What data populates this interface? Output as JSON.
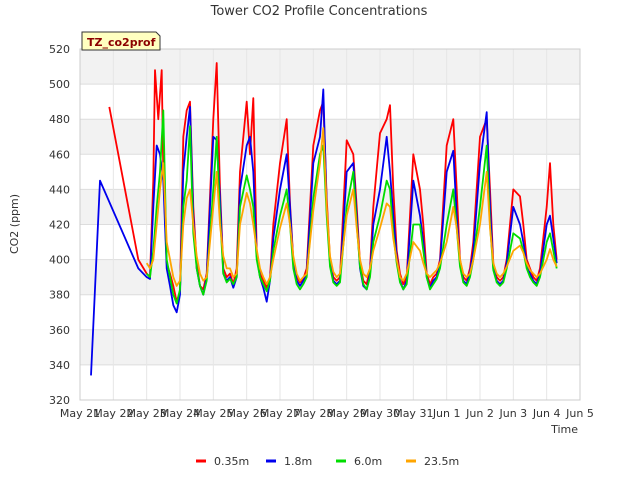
{
  "chart_data": {
    "type": "line",
    "title": "Tower CO2 Profile Concentrations",
    "badge": "TZ_co2prof",
    "xlabel": "Time",
    "ylabel": "CO2 (ppm)",
    "xlim": [
      0,
      15
    ],
    "ylim": [
      320,
      520
    ],
    "yticks": [
      320,
      340,
      360,
      380,
      400,
      420,
      440,
      460,
      480,
      500,
      520
    ],
    "xticks": [
      {
        "x": 0,
        "label": "May 21"
      },
      {
        "x": 1,
        "label": "May 22"
      },
      {
        "x": 2,
        "label": "May 23"
      },
      {
        "x": 3,
        "label": "May 24"
      },
      {
        "x": 4,
        "label": "May 25"
      },
      {
        "x": 5,
        "label": "May 26"
      },
      {
        "x": 6,
        "label": "May 27"
      },
      {
        "x": 7,
        "label": "May 28"
      },
      {
        "x": 8,
        "label": "May 29"
      },
      {
        "x": 9,
        "label": "May 30"
      },
      {
        "x": 10,
        "label": "May 31"
      },
      {
        "x": 11,
        "label": "Jun 1"
      },
      {
        "x": 12,
        "label": "Jun 2"
      },
      {
        "x": 13,
        "label": "Jun 3"
      },
      {
        "x": 14,
        "label": "Jun 4"
      },
      {
        "x": 15,
        "label": "Jun 5"
      }
    ],
    "grid": true,
    "legend_position": "bottom",
    "series": [
      {
        "name": "0.35m",
        "color": "#ff0000",
        "x": [
          0.88,
          1.75,
          2.0,
          2.1,
          2.2,
          2.25,
          2.35,
          2.45,
          2.5,
          2.6,
          2.7,
          2.8,
          2.9,
          3.0,
          3.1,
          3.2,
          3.3,
          3.4,
          3.5,
          3.6,
          3.7,
          3.8,
          4.0,
          4.1,
          4.2,
          4.3,
          4.4,
          4.5,
          4.6,
          4.7,
          4.8,
          5.0,
          5.1,
          5.2,
          5.3,
          5.4,
          5.5,
          5.6,
          5.7,
          5.8,
          6.0,
          6.2,
          6.3,
          6.4,
          6.5,
          6.6,
          6.7,
          6.8,
          7.0,
          7.2,
          7.3,
          7.4,
          7.5,
          7.6,
          7.7,
          7.8,
          8.0,
          8.2,
          8.3,
          8.4,
          8.5,
          8.6,
          8.7,
          8.8,
          9.0,
          9.2,
          9.3,
          9.4,
          9.5,
          9.6,
          9.7,
          9.8,
          10.0,
          10.2,
          10.3,
          10.4,
          10.5,
          10.6,
          10.7,
          10.8,
          11.0,
          11.2,
          11.3,
          11.4,
          11.5,
          11.6,
          11.7,
          11.8,
          12.0,
          12.2,
          12.3,
          12.4,
          12.5,
          12.6,
          12.7,
          12.8,
          13.0,
          13.2,
          13.3,
          13.4,
          13.5,
          13.6,
          13.7,
          13.8,
          14.0,
          14.1,
          14.2,
          14.3
        ],
        "y": [
          487,
          400,
          392,
          390,
          445,
          508,
          480,
          508,
          450,
          398,
          392,
          385,
          376,
          382,
          470,
          485,
          490,
          430,
          398,
          385,
          383,
          392,
          480,
          512,
          440,
          395,
          390,
          392,
          386,
          395,
          450,
          490,
          460,
          492,
          405,
          392,
          388,
          384,
          390,
          420,
          455,
          480,
          432,
          400,
          390,
          387,
          389,
          395,
          465,
          485,
          490,
          435,
          400,
          390,
          388,
          390,
          468,
          460,
          430,
          398,
          388,
          386,
          395,
          430,
          472,
          480,
          488,
          440,
          405,
          392,
          386,
          390,
          460,
          440,
          420,
          392,
          386,
          390,
          392,
          400,
          465,
          480,
          440,
          400,
          390,
          388,
          395,
          410,
          470,
          480,
          440,
          398,
          390,
          388,
          390,
          400,
          440,
          436,
          420,
          400,
          395,
          390,
          388,
          395,
          430,
          455,
          420,
          400
        ]
      },
      {
        "name": "1.8m",
        "color": "#0000ee",
        "x": [
          0.33,
          0.6,
          1.75,
          2.0,
          2.1,
          2.2,
          2.3,
          2.4,
          2.5,
          2.6,
          2.7,
          2.8,
          2.9,
          3.0,
          3.1,
          3.2,
          3.3,
          3.4,
          3.5,
          3.6,
          3.7,
          3.8,
          4.0,
          4.1,
          4.2,
          4.3,
          4.4,
          4.5,
          4.6,
          4.7,
          4.8,
          5.0,
          5.1,
          5.2,
          5.3,
          5.4,
          5.5,
          5.6,
          5.7,
          5.8,
          6.0,
          6.2,
          6.3,
          6.4,
          6.5,
          6.6,
          6.7,
          6.8,
          7.0,
          7.2,
          7.3,
          7.4,
          7.5,
          7.6,
          7.7,
          7.8,
          8.0,
          8.2,
          8.3,
          8.4,
          8.5,
          8.6,
          8.7,
          8.8,
          9.0,
          9.2,
          9.3,
          9.4,
          9.5,
          9.6,
          9.7,
          9.8,
          10.0,
          10.2,
          10.3,
          10.4,
          10.5,
          10.6,
          10.7,
          10.8,
          11.0,
          11.2,
          11.3,
          11.4,
          11.5,
          11.6,
          11.7,
          11.8,
          12.0,
          12.2,
          12.3,
          12.4,
          12.5,
          12.6,
          12.7,
          12.8,
          13.0,
          13.2,
          13.3,
          13.4,
          13.5,
          13.6,
          13.7,
          13.8,
          14.0,
          14.1,
          14.2,
          14.3
        ],
        "y": [
          334,
          445,
          395,
          390,
          389,
          430,
          465,
          460,
          445,
          395,
          385,
          374,
          370,
          380,
          450,
          470,
          487,
          425,
          395,
          385,
          380,
          390,
          470,
          468,
          435,
          392,
          388,
          390,
          384,
          390,
          440,
          465,
          470,
          450,
          402,
          390,
          384,
          376,
          388,
          412,
          440,
          460,
          430,
          398,
          388,
          385,
          388,
          392,
          455,
          470,
          497,
          430,
          398,
          388,
          386,
          388,
          450,
          455,
          425,
          395,
          385,
          383,
          392,
          420,
          440,
          470,
          450,
          425,
          402,
          388,
          383,
          388,
          445,
          425,
          410,
          390,
          384,
          388,
          390,
          398,
          450,
          462,
          425,
          398,
          388,
          386,
          393,
          405,
          455,
          484,
          430,
          395,
          388,
          386,
          388,
          398,
          430,
          420,
          410,
          398,
          392,
          388,
          386,
          392,
          420,
          425,
          412,
          398
        ]
      },
      {
        "name": "6.0m",
        "color": "#00dd00",
        "x": [
          2.0,
          2.1,
          2.2,
          2.3,
          2.4,
          2.5,
          2.6,
          2.7,
          2.8,
          2.9,
          3.0,
          3.1,
          3.2,
          3.3,
          3.4,
          3.5,
          3.6,
          3.7,
          3.8,
          4.0,
          4.1,
          4.2,
          4.3,
          4.4,
          4.5,
          4.6,
          4.7,
          4.8,
          5.0,
          5.1,
          5.2,
          5.3,
          5.4,
          5.5,
          5.6,
          5.7,
          5.8,
          6.0,
          6.2,
          6.3,
          6.4,
          6.5,
          6.6,
          6.7,
          6.8,
          7.0,
          7.2,
          7.3,
          7.4,
          7.5,
          7.6,
          7.7,
          7.8,
          8.0,
          8.2,
          8.3,
          8.4,
          8.5,
          8.6,
          8.7,
          8.8,
          9.0,
          9.2,
          9.3,
          9.4,
          9.5,
          9.6,
          9.7,
          9.8,
          10.0,
          10.2,
          10.3,
          10.4,
          10.5,
          10.6,
          10.7,
          10.8,
          11.0,
          11.2,
          11.3,
          11.4,
          11.5,
          11.6,
          11.7,
          11.8,
          12.0,
          12.2,
          12.3,
          12.4,
          12.5,
          12.6,
          12.7,
          12.8,
          13.0,
          13.2,
          13.3,
          13.4,
          13.5,
          13.6,
          13.7,
          13.8,
          14.0,
          14.1,
          14.2,
          14.3
        ],
        "y": [
          392,
          390,
          405,
          430,
          450,
          485,
          400,
          390,
          380,
          375,
          383,
          430,
          445,
          476,
          415,
          395,
          385,
          380,
          388,
          440,
          470,
          425,
          392,
          387,
          389,
          386,
          390,
          430,
          448,
          440,
          430,
          400,
          390,
          386,
          382,
          388,
          405,
          425,
          440,
          420,
          395,
          386,
          383,
          386,
          390,
          435,
          460,
          465,
          425,
          396,
          387,
          385,
          387,
          430,
          450,
          420,
          396,
          386,
          383,
          390,
          410,
          425,
          445,
          440,
          415,
          398,
          387,
          383,
          386,
          420,
          420,
          405,
          390,
          383,
          386,
          389,
          395,
          420,
          440,
          418,
          396,
          387,
          385,
          390,
          400,
          430,
          465,
          420,
          394,
          387,
          385,
          387,
          395,
          415,
          412,
          405,
          395,
          390,
          387,
          385,
          390,
          410,
          415,
          405,
          395
        ]
      },
      {
        "name": "23.5m",
        "color": "#ffa500",
        "x": [
          2.0,
          2.1,
          2.2,
          2.3,
          2.4,
          2.5,
          2.6,
          2.7,
          2.8,
          2.9,
          3.0,
          3.1,
          3.2,
          3.3,
          3.4,
          3.5,
          3.6,
          3.7,
          3.8,
          4.0,
          4.1,
          4.2,
          4.3,
          4.4,
          4.5,
          4.6,
          4.7,
          4.8,
          5.0,
          5.1,
          5.2,
          5.3,
          5.4,
          5.5,
          5.6,
          5.7,
          5.8,
          6.0,
          6.2,
          6.3,
          6.4,
          6.5,
          6.6,
          6.7,
          6.8,
          7.0,
          7.2,
          7.3,
          7.4,
          7.5,
          7.6,
          7.7,
          7.8,
          8.0,
          8.2,
          8.3,
          8.4,
          8.5,
          8.6,
          8.7,
          8.8,
          9.0,
          9.2,
          9.3,
          9.4,
          9.5,
          9.6,
          9.7,
          9.8,
          10.0,
          10.2,
          10.3,
          10.4,
          10.5,
          10.6,
          10.7,
          10.8,
          11.0,
          11.2,
          11.3,
          11.4,
          11.5,
          11.6,
          11.7,
          11.8,
          12.0,
          12.2,
          12.3,
          12.4,
          12.5,
          12.6,
          12.7,
          12.8,
          13.0,
          13.2,
          13.3,
          13.4,
          13.5,
          13.6,
          13.7,
          13.8,
          14.0,
          14.1,
          14.2,
          14.3
        ],
        "y": [
          398,
          395,
          400,
          420,
          440,
          455,
          410,
          400,
          390,
          385,
          388,
          420,
          435,
          440,
          420,
          402,
          392,
          388,
          390,
          430,
          450,
          420,
          402,
          395,
          395,
          390,
          392,
          420,
          438,
          432,
          420,
          406,
          395,
          390,
          386,
          390,
          400,
          418,
          432,
          420,
          402,
          392,
          388,
          390,
          392,
          428,
          455,
          475,
          430,
          402,
          393,
          390,
          392,
          425,
          440,
          418,
          400,
          392,
          390,
          395,
          405,
          418,
          432,
          430,
          412,
          400,
          390,
          388,
          392,
          410,
          405,
          398,
          392,
          390,
          392,
          394,
          398,
          410,
          430,
          418,
          400,
          392,
          390,
          392,
          400,
          420,
          450,
          418,
          398,
          392,
          390,
          392,
          396,
          405,
          408,
          404,
          398,
          394,
          392,
          390,
          392,
          400,
          406,
          400,
          396
        ]
      }
    ]
  }
}
